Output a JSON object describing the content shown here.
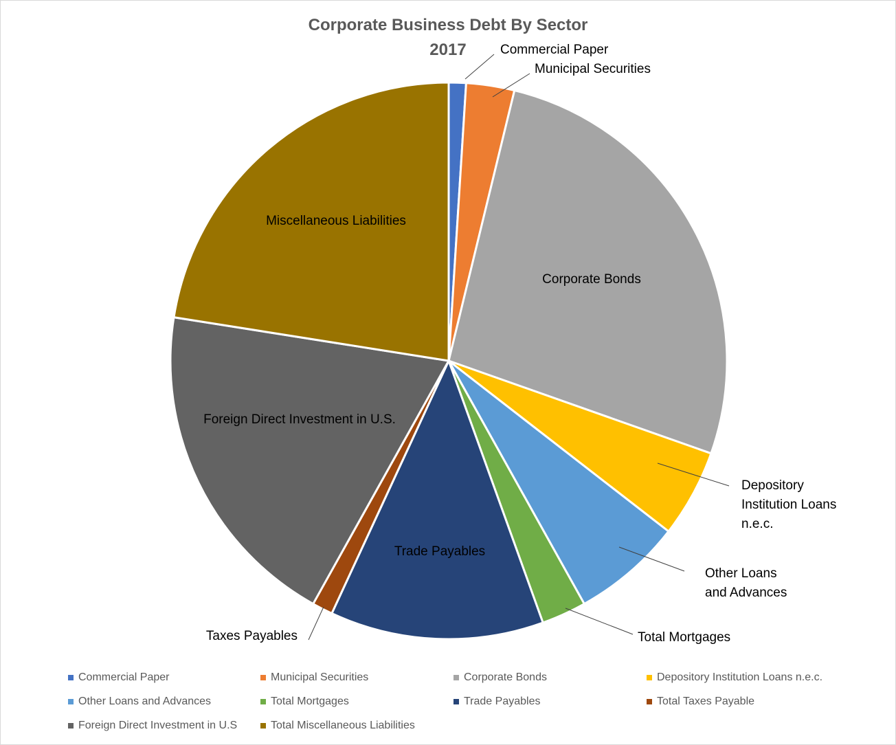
{
  "chart_data": {
    "type": "pie",
    "title": "Corporate Business Debt By Sector",
    "subtitle": "2017",
    "categories": [
      "Commercial Paper",
      "Municipal Securities",
      "Corporate Bonds",
      "Depository Institution Loans n.e.c.",
      "Other Loans and Advances",
      "Total Mortgages",
      "Trade Payables",
      "Total Taxes Payable",
      "Foreign Direct Investment in U.S",
      "Total Miscellaneous Liabilities"
    ],
    "values": [
      1.0,
      2.8,
      26.6,
      5.1,
      6.4,
      2.6,
      12.4,
      1.2,
      19.4,
      22.5
    ],
    "colors": [
      "#4472c4",
      "#ed7d31",
      "#a5a5a5",
      "#ffc000",
      "#5b9bd5",
      "#70ad47",
      "#264478",
      "#9e480e",
      "#636363",
      "#997300"
    ],
    "data_labels": [
      "Commercial Paper",
      "Municipal Securities",
      "Corporate Bonds",
      "Depository Institution Loans n.e.c.",
      "Other Loans and Advances",
      "Total Mortgages",
      "Trade Payables",
      "Taxes Payables",
      "Foreign Direct Investment in U.S.",
      "Miscellaneous Liabilities"
    ],
    "legend_position": "bottom"
  }
}
